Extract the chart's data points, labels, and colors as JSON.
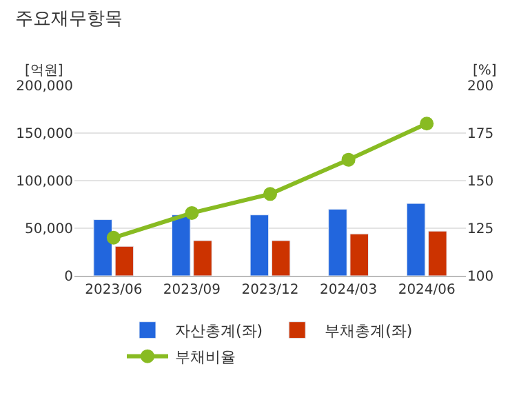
{
  "chart_data": {
    "type": "bar",
    "title": "주요재무항목",
    "ylabel": "[억원]",
    "y2label": "[%]",
    "categories": [
      "2023/06",
      "2023/09",
      "2023/12",
      "2024/03",
      "2024/06"
    ],
    "series": [
      {
        "name": "자산총계(좌)",
        "color": "#2266dd",
        "values": [
          59000,
          64000,
          64000,
          70000,
          76000
        ]
      },
      {
        "name": "부채총계(좌)",
        "color": "#cc3300",
        "values": [
          31000,
          37000,
          37000,
          44000,
          47000
        ]
      },
      {
        "name": "부채비율",
        "type": "line",
        "axis": "y2",
        "color": "#88bb22",
        "marker": "circle",
        "values": [
          120,
          133,
          143,
          161,
          180
        ]
      }
    ],
    "ylim": [
      0,
      200000
    ],
    "yticks": [
      {
        "value": 0,
        "label": "0"
      },
      {
        "value": 50000,
        "label": "50,000"
      },
      {
        "value": 100000,
        "label": "100,000"
      },
      {
        "value": 150000,
        "label": "150,000"
      },
      {
        "value": 200000,
        "label": "200,000"
      }
    ],
    "y2lim": [
      100,
      200
    ],
    "y2ticks": [
      100,
      125,
      150,
      175,
      200
    ],
    "grid": "y",
    "legend": "bottom"
  }
}
